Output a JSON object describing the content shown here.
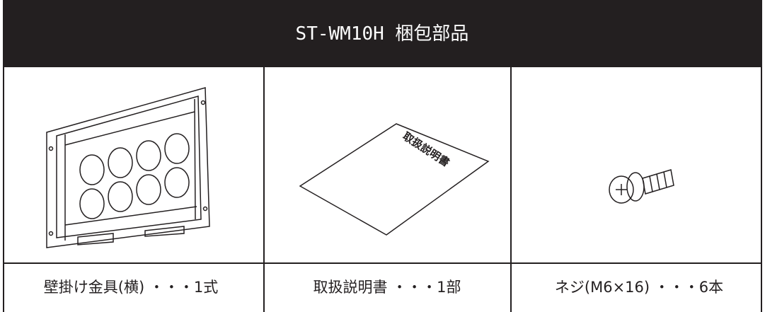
{
  "header": {
    "title": "ST-WM10H 梱包部品"
  },
  "items": [
    {
      "caption": "壁掛け金具(横) ・・・1式"
    },
    {
      "illustration_label": "取扱説明書",
      "caption": "取扱説明書 ・・・1部"
    },
    {
      "caption": "ネジ(M6×16) ・・・6本"
    }
  ]
}
